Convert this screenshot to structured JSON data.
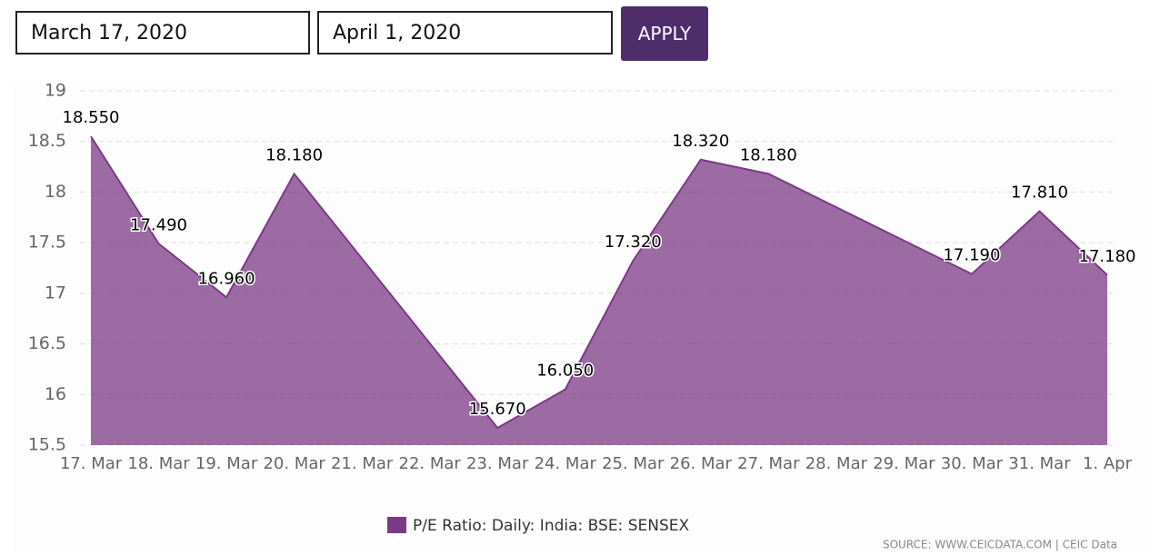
{
  "date_range": {
    "start": "March 17, 2020",
    "end": "April 1, 2020",
    "apply": "APPLY"
  },
  "chart_data": {
    "type": "area",
    "xticks": [
      "17. Mar",
      "18. Mar",
      "19. Mar",
      "20. Mar",
      "21. Mar",
      "22. Mar",
      "23. Mar",
      "24. Mar",
      "25. Mar",
      "26. Mar",
      "27. Mar",
      "28. Mar",
      "29. Mar",
      "30. Mar",
      "31. Mar",
      "1. Apr"
    ],
    "x": [
      "17. Mar",
      "18. Mar",
      "19. Mar",
      "20. Mar",
      "23. Mar",
      "24. Mar",
      "25. Mar",
      "26. Mar",
      "27. Mar",
      "30. Mar",
      "31. Mar",
      "1. Apr"
    ],
    "series": [
      {
        "name": "P/E Ratio: Daily: India: BSE: SENSEX",
        "color": "#7b3a85",
        "values": [
          18.55,
          17.49,
          16.96,
          18.18,
          15.67,
          16.05,
          17.32,
          18.32,
          18.18,
          17.19,
          17.81,
          17.18
        ],
        "value_labels": [
          "18.550",
          "17.490",
          "16.960",
          "18.180",
          "15.670",
          "16.050",
          "17.320",
          "18.320",
          "18.180",
          "17.190",
          "17.810",
          "17.180"
        ]
      }
    ],
    "ylim": [
      15.5,
      19
    ],
    "yticks": [
      15.5,
      16,
      16.5,
      17,
      17.5,
      18,
      18.5,
      19
    ],
    "grid": true,
    "legend": "bottom",
    "source": "SOURCE: WWW.CEICDATA.COM | CEIC Data"
  }
}
